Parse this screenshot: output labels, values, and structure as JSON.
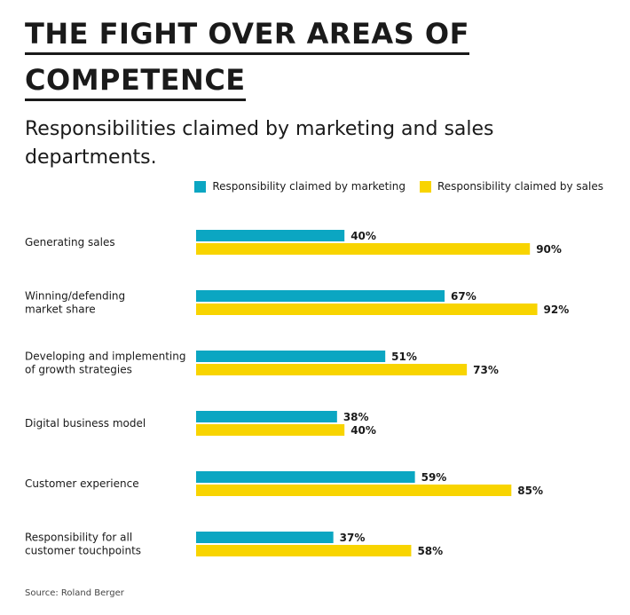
{
  "title_lines": [
    "THE FIGHT OVER AREAS OF",
    "COMPETENCE"
  ],
  "subtitle": "Responsibilities claimed by marketing and sales departments.",
  "source": "Source: Roland Berger",
  "colors": {
    "marketing": "#0ba6c2",
    "sales": "#f8d400",
    "text": "#1a1a1a"
  },
  "chart_data": {
    "type": "bar",
    "orientation": "horizontal",
    "title": "THE FIGHT OVER AREAS OF COMPETENCE",
    "subtitle": "Responsibilities claimed by marketing and sales departments.",
    "categories": [
      "Generating sales",
      "Winning/defending\nmarket share",
      "Developing and implementing\nof growth strategies",
      "Digital business model",
      "Customer experience",
      "Responsibility for all\ncustomer touchpoints"
    ],
    "series": [
      {
        "name": "Responsibility claimed by marketing",
        "color": "#0ba6c2",
        "values": [
          40,
          67,
          51,
          38,
          59,
          37
        ]
      },
      {
        "name": "Responsibility claimed by sales",
        "color": "#f8d400",
        "values": [
          90,
          92,
          73,
          40,
          85,
          58
        ]
      }
    ],
    "value_suffix": "%",
    "xlim": [
      0,
      100
    ],
    "legend_position": "top-right",
    "grid": false
  }
}
